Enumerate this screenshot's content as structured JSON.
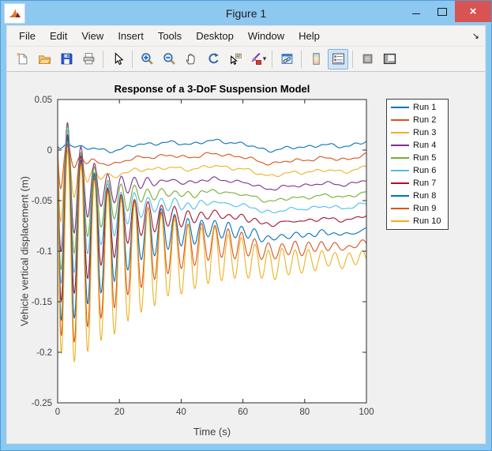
{
  "window": {
    "title": "Figure 1",
    "app_icon": "matlab-logo",
    "controls": [
      "minimize",
      "maximize",
      "close"
    ],
    "close_glyph": "×"
  },
  "menu": {
    "items": [
      "File",
      "Edit",
      "View",
      "Insert",
      "Tools",
      "Desktop",
      "Window",
      "Help"
    ],
    "dock_arrow": "↘"
  },
  "toolbar": {
    "buttons": [
      {
        "name": "new-figure"
      },
      {
        "name": "open-file"
      },
      {
        "name": "save-figure"
      },
      {
        "name": "print-figure"
      },
      {
        "type": "separator"
      },
      {
        "name": "edit-plot"
      },
      {
        "type": "separator"
      },
      {
        "name": "zoom-in"
      },
      {
        "name": "zoom-out"
      },
      {
        "name": "pan"
      },
      {
        "name": "rotate-3d"
      },
      {
        "name": "data-cursor"
      },
      {
        "name": "brush-data",
        "dropdown": true
      },
      {
        "type": "separator"
      },
      {
        "name": "link-plot"
      },
      {
        "type": "separator"
      },
      {
        "name": "insert-colorbar"
      },
      {
        "name": "insert-legend",
        "active": true
      },
      {
        "type": "separator"
      },
      {
        "name": "hide-plot-tools"
      },
      {
        "name": "show-plot-tools"
      }
    ]
  },
  "colors": {
    "titlebar": "#8DC8F0",
    "close_button": "#D75452",
    "canvas": "#F0F0F0",
    "axes_box": "#2b2b2b",
    "tick_label": "#3f3f3f"
  },
  "chart_data": {
    "type": "line",
    "title": "Response of a 3-DoF Suspension Model",
    "xlabel": "Time (s)",
    "ylabel": "Vehicle vertical displacement (m)",
    "xlim": [
      0,
      100
    ],
    "ylim": [
      -0.25,
      0.05
    ],
    "xticks": [
      0,
      20,
      40,
      60,
      80,
      100
    ],
    "yticks": [
      0.05,
      0,
      -0.05,
      -0.1,
      -0.15,
      -0.2,
      -0.25
    ],
    "grid": false,
    "legend_position": "northeast-outside",
    "model": "y(t) = offset*(1-exp(-1.5*t)) - amp*exp(-decay*t)*sin(omega*t) + road_ripple(t) + jitter(i,t); damped step responses, one per run, settling to evenly spaced offsets",
    "omega": 1.45,
    "settle_rate": 1.5,
    "road_ripple": [
      {
        "amp": 0.0035,
        "freq": 0.105,
        "phase": 3.1416
      },
      {
        "amp": 0.0018,
        "freq": 0.24,
        "phase": 0.9
      },
      {
        "amp": 0.001,
        "freq": 0.5,
        "phase": 2.0
      }
    ],
    "jitter": [
      {
        "amp": 0.001,
        "freq": 0.85,
        "phase_step": 2.1
      },
      {
        "amp": 0.0007,
        "freq": 1.7,
        "phase_step": 0.9
      }
    ],
    "series": [
      {
        "name": "Run 1",
        "color": "#0072BD",
        "offset": 0.005,
        "amp": 0.008,
        "decay": 0.5
      },
      {
        "name": "Run 2",
        "color": "#D95319",
        "offset": -0.008,
        "amp": 0.045,
        "decay": 0.32
      },
      {
        "name": "Run 3",
        "color": "#EDB120",
        "offset": -0.02,
        "amp": 0.07,
        "decay": 0.2
      },
      {
        "name": "Run 4",
        "color": "#7E2F8E",
        "offset": -0.033,
        "amp": 0.085,
        "decay": 0.105
      },
      {
        "name": "Run 5",
        "color": "#77AC30",
        "offset": -0.045,
        "amp": 0.092,
        "decay": 0.09
      },
      {
        "name": "Run 6",
        "color": "#4DBEEE",
        "offset": -0.056,
        "amp": 0.098,
        "decay": 0.08
      },
      {
        "name": "Run 7",
        "color": "#A2142F",
        "offset": -0.068,
        "amp": 0.104,
        "decay": 0.065
      },
      {
        "name": "Run 8",
        "color": "#0072BD",
        "offset": -0.082,
        "amp": 0.109,
        "decay": 0.05
      },
      {
        "name": "Run 9",
        "color": "#D95319",
        "offset": -0.095,
        "amp": 0.113,
        "decay": 0.038
      },
      {
        "name": "Run 10",
        "color": "#EDB120",
        "offset": -0.108,
        "amp": 0.118,
        "decay": 0.03
      }
    ]
  }
}
